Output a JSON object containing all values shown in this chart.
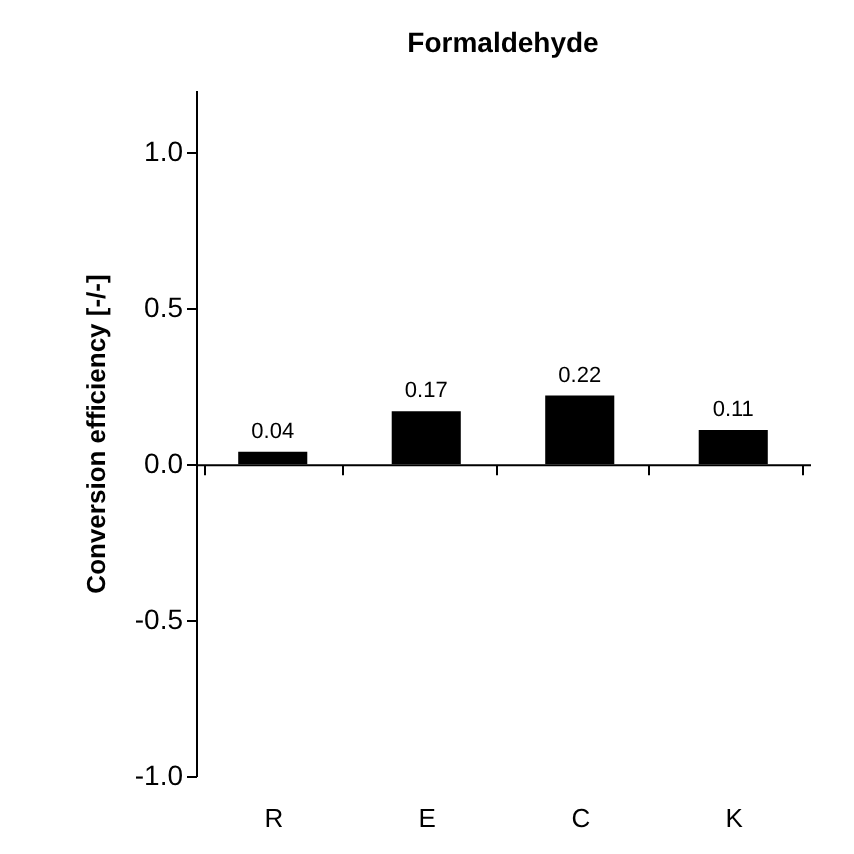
{
  "chart_data": {
    "type": "bar",
    "title": "Formaldehyde",
    "ylabel": "Conversion efficiency [-/-]",
    "categories": [
      "R",
      "E",
      "C",
      "K"
    ],
    "values": [
      0.04,
      0.17,
      0.22,
      0.11
    ],
    "color": "#000000",
    "data_labels": true,
    "ylim": [
      -1,
      1.2
    ],
    "yticks": [
      {
        "value": -1,
        "label": "-1.0"
      },
      {
        "value": -0.5,
        "label": "-0.5"
      },
      {
        "value": 0,
        "label": "0.0"
      },
      {
        "value": 0.5,
        "label": "0.5"
      },
      {
        "value": 1,
        "label": "1.0"
      }
    ]
  }
}
